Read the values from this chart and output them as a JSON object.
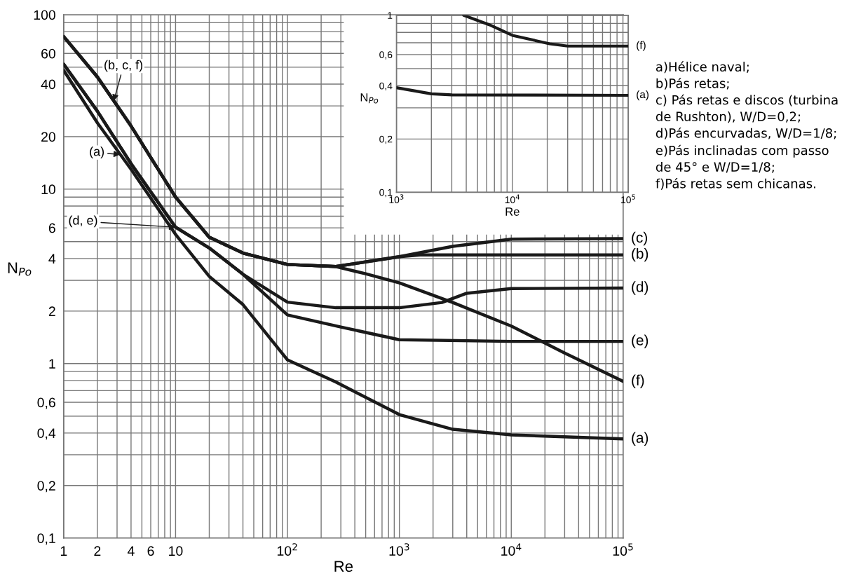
{
  "chart_data": [
    {
      "type": "line",
      "xlabel": "Re",
      "ylabel": "N$_{Po}$",
      "log": "xy",
      "grid": true,
      "xlim": [
        1,
        100000
      ],
      "ylim": [
        0.1,
        100
      ],
      "xticks": [
        1,
        2,
        {
          "value": 3,
          "label": null
        },
        4,
        {
          "value": 5,
          "label": null
        },
        6,
        {
          "value": 7,
          "label": null
        },
        {
          "value": 8,
          "label": null
        },
        {
          "value": 9,
          "label": null
        },
        10,
        {
          "value": 20,
          "label": null
        },
        {
          "value": 30,
          "label": null
        },
        {
          "value": 40,
          "label": null
        },
        {
          "value": 50,
          "label": null
        },
        {
          "value": 60,
          "label": null
        },
        {
          "value": 70,
          "label": null
        },
        {
          "value": 80,
          "label": null
        },
        {
          "value": 90,
          "label": null
        },
        {
          "value": 100,
          "label": "10$^{2}$"
        },
        {
          "value": 200,
          "label": null
        },
        {
          "value": 300,
          "label": null
        },
        {
          "value": 400,
          "label": null
        },
        {
          "value": 500,
          "label": null
        },
        {
          "value": 600,
          "label": null
        },
        {
          "value": 700,
          "label": null
        },
        {
          "value": 800,
          "label": null
        },
        {
          "value": 900,
          "label": null
        },
        {
          "value": 1000,
          "label": "10$^{3}$"
        },
        {
          "value": 2000,
          "label": null
        },
        {
          "value": 3000,
          "label": null
        },
        {
          "value": 4000,
          "label": null
        },
        {
          "value": 5000,
          "label": null
        },
        {
          "value": 6000,
          "label": null
        },
        {
          "value": 7000,
          "label": null
        },
        {
          "value": 8000,
          "label": null
        },
        {
          "value": 9000,
          "label": null
        },
        {
          "value": 10000,
          "label": "10$^{4}$"
        },
        {
          "value": 20000,
          "label": null
        },
        {
          "value": 30000,
          "label": null
        },
        {
          "value": 40000,
          "label": null
        },
        {
          "value": 50000,
          "label": null
        },
        {
          "value": 60000,
          "label": null
        },
        {
          "value": 70000,
          "label": null
        },
        {
          "value": 80000,
          "label": null
        },
        {
          "value": 90000,
          "label": null
        },
        {
          "value": 100000,
          "label": "10$^{5}$"
        }
      ],
      "yticks": [
        {
          "value": 0.1,
          "label": "0,1"
        },
        {
          "value": 0.2,
          "label": "0,2"
        },
        {
          "value": 0.3,
          "label": null
        },
        {
          "value": 0.4,
          "label": "0,4"
        },
        {
          "value": 0.5,
          "label": null
        },
        {
          "value": 0.6,
          "label": "0,6"
        },
        {
          "value": 0.7,
          "label": null
        },
        {
          "value": 0.8,
          "label": null
        },
        {
          "value": 0.9,
          "label": null
        },
        1,
        2,
        {
          "value": 3,
          "label": null
        },
        4,
        {
          "value": 5,
          "label": null
        },
        6,
        {
          "value": 7,
          "label": null
        },
        {
          "value": 8,
          "label": null
        },
        {
          "value": 9,
          "label": null
        },
        10,
        20,
        {
          "value": 30,
          "label": null
        },
        40,
        {
          "value": 50,
          "label": null
        },
        60,
        {
          "value": 70,
          "label": null
        },
        {
          "value": 80,
          "label": null
        },
        {
          "value": 90,
          "label": null
        },
        100
      ],
      "series": [
        {
          "name": "(c)",
          "color": "#1a1a1a",
          "x": [
            1,
            2,
            4,
            10,
            20,
            40,
            100,
            270,
            1000,
            3000,
            10000,
            100000
          ],
          "values": [
            75,
            44,
            23,
            9,
            5.3,
            4.3,
            3.7,
            3.6,
            4.1,
            4.7,
            5.17,
            5.2
          ]
        },
        {
          "name": "(b)",
          "color": "#1a1a1a",
          "x": [
            1,
            2,
            4,
            10,
            20,
            40,
            100,
            270,
            1000,
            1600,
            10000,
            100000
          ],
          "values": [
            75,
            44,
            23,
            9,
            5.3,
            4.3,
            3.7,
            3.6,
            4.1,
            4.2,
            4.2,
            4.2
          ]
        },
        {
          "name": "(d)",
          "color": "#1a1a1a",
          "x": [
            1,
            2,
            4,
            10,
            20,
            40,
            100,
            270,
            1000,
            2400,
            4000,
            10000,
            100000
          ],
          "values": [
            52,
            28,
            14,
            6.05,
            4.6,
            3.25,
            2.25,
            2.09,
            2.09,
            2.24,
            2.53,
            2.69,
            2.71
          ]
        },
        {
          "name": "(e)",
          "color": "#1a1a1a",
          "x": [
            1,
            2,
            4,
            10,
            20,
            40,
            100,
            300,
            1000,
            10000,
            100000
          ],
          "values": [
            52,
            28,
            14,
            6.05,
            4.6,
            3.25,
            1.9,
            1.62,
            1.37,
            1.34,
            1.34
          ]
        },
        {
          "name": "(f)",
          "color": "#1a1a1a",
          "x": [
            1,
            2,
            4,
            10,
            20,
            40,
            100,
            270,
            500,
            1000,
            3000,
            10000,
            30000,
            100000
          ],
          "values": [
            75,
            44,
            23,
            9,
            5.3,
            4.3,
            3.7,
            3.6,
            3.27,
            2.9,
            2.24,
            1.64,
            1.15,
            0.79
          ]
        },
        {
          "name": "(a)",
          "color": "#1a1a1a",
          "x": [
            1,
            2,
            4,
            10,
            20,
            40,
            100,
            270,
            1000,
            3000,
            10000,
            100000
          ],
          "values": [
            48,
            24,
            13,
            5.5,
            3.16,
            2.18,
            1.05,
            0.785,
            0.51,
            0.42,
            0.39,
            0.37
          ]
        }
      ],
      "annotations": [
        {
          "text": "(b, c, f)",
          "x": 2.8,
          "y": 32
        },
        {
          "text": "(a)",
          "x": 3.2,
          "y": 15.8
        },
        {
          "text": "(d, e)",
          "x": 10,
          "y": 6.05
        },
        "a)Hélice naval;",
        "b)Pás retas;",
        "c) Pás retas e discos (turbina de Rushton), W/D=0,2;",
        "d)Pás encurvadas, W/D=1/8;",
        "e)Pás inclinadas com passo de 45° e W/D=1/8;",
        "f)Pás retas sem chicanas."
      ]
    },
    {
      "type": "line",
      "xlabel": "Re",
      "ylabel": "N$_{Po}$",
      "log": "xy",
      "grid": true,
      "xlim": [
        1000,
        100000
      ],
      "ylim": [
        0.1,
        1
      ],
      "xticks": [
        {
          "value": 1000,
          "label": "10$^{3}$"
        },
        {
          "value": 2000,
          "label": null
        },
        {
          "value": 3000,
          "label": null
        },
        {
          "value": 4000,
          "label": null
        },
        {
          "value": 5000,
          "label": null
        },
        {
          "value": 6000,
          "label": null
        },
        {
          "value": 7000,
          "label": null
        },
        {
          "value": 8000,
          "label": null
        },
        {
          "value": 9000,
          "label": null
        },
        {
          "value": 10000,
          "label": "10$^{4}$"
        },
        {
          "value": 20000,
          "label": null
        },
        {
          "value": 30000,
          "label": null
        },
        {
          "value": 40000,
          "label": null
        },
        {
          "value": 50000,
          "label": null
        },
        {
          "value": 60000,
          "label": null
        },
        {
          "value": 70000,
          "label": null
        },
        {
          "value": 80000,
          "label": null
        },
        {
          "value": 90000,
          "label": null
        },
        {
          "value": 100000,
          "label": "10$^{5}$"
        }
      ],
      "yticks": [
        {
          "value": 0.1,
          "label": "0,1"
        },
        {
          "value": 0.2,
          "label": "0,2"
        },
        {
          "value": 0.3,
          "label": null
        },
        {
          "value": 0.4,
          "label": "0,4"
        },
        {
          "value": 0.5,
          "label": null
        },
        {
          "value": 0.6,
          "label": "0,6"
        },
        {
          "value": 0.7,
          "label": null
        },
        {
          "value": 0.8,
          "label": null
        },
        {
          "value": 0.9,
          "label": null
        },
        1
      ],
      "series": [
        {
          "name": "(f)",
          "color": "#1a1a1a",
          "x": [
            3800,
            6300,
            10000,
            21000,
            30000,
            100000
          ],
          "values": [
            1,
            0.885,
            0.77,
            0.69,
            0.67,
            0.67
          ]
        },
        {
          "name": "(a)",
          "color": "#1a1a1a",
          "x": [
            1000,
            2000,
            3000,
            100000
          ],
          "values": [
            0.39,
            0.36,
            0.355,
            0.353
          ]
        }
      ]
    }
  ]
}
